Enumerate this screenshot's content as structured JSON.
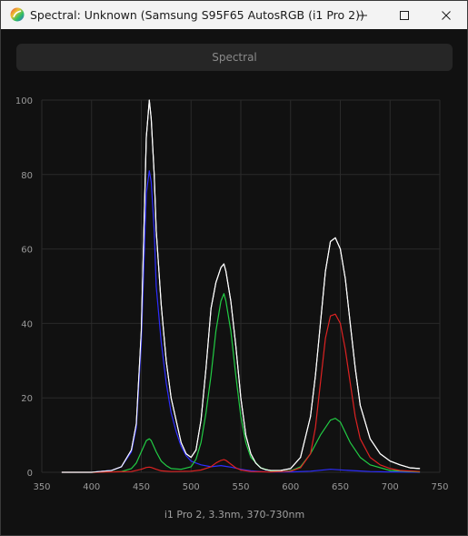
{
  "window": {
    "title": "Spectral: Unknown (Samsung S95F65 AutosRGB (i1 Pro 2))",
    "icons": {
      "app": "spectral-app-icon",
      "minimize": "minimize-icon",
      "maximize": "maximize-icon",
      "close": "close-icon"
    }
  },
  "toolbar": {
    "spectral_label": "Spectral"
  },
  "chart_data": {
    "type": "line",
    "caption": "i1 Pro 2, 3.3nm, 370-730nm",
    "xlim": [
      350,
      750
    ],
    "ylim": [
      0,
      100
    ],
    "xticks": [
      350,
      400,
      450,
      500,
      550,
      600,
      650,
      700,
      750
    ],
    "yticks": [
      0,
      20,
      40,
      60,
      80,
      100
    ],
    "grid": true,
    "series": [
      {
        "color": "#ffffff",
        "x": [
          370,
          380,
          400,
          420,
          430,
          440,
          445,
          450,
          455,
          458,
          460,
          463,
          465,
          470,
          475,
          480,
          485,
          490,
          495,
          500,
          505,
          510,
          515,
          520,
          525,
          530,
          533,
          535,
          540,
          545,
          550,
          555,
          560,
          565,
          570,
          575,
          580,
          590,
          600,
          610,
          620,
          625,
          630,
          635,
          640,
          645,
          650,
          655,
          660,
          665,
          670,
          680,
          690,
          700,
          710,
          720,
          730
        ],
        "y": [
          0,
          0,
          0,
          0.5,
          1.5,
          6,
          13,
          38,
          90,
          100,
          95,
          80,
          65,
          45,
          30,
          20,
          14,
          8,
          5,
          4,
          6,
          14,
          28,
          44,
          51,
          55,
          56,
          54,
          46,
          34,
          20,
          10,
          5,
          2.5,
          1.2,
          0.7,
          0.5,
          0.5,
          1,
          4,
          15,
          26,
          40,
          54,
          62,
          63,
          60,
          52,
          40,
          28,
          18,
          9,
          5,
          3,
          2,
          1.2,
          1
        ]
      },
      {
        "color": "#2d2dff",
        "x": [
          370,
          380,
          400,
          420,
          430,
          440,
          445,
          450,
          455,
          458,
          460,
          463,
          465,
          470,
          475,
          480,
          485,
          490,
          495,
          500,
          505,
          510,
          520,
          530,
          535,
          540,
          550,
          560,
          570,
          580,
          600,
          620,
          640,
          660,
          680,
          700,
          730
        ],
        "y": [
          0,
          0,
          0,
          0.5,
          1.5,
          5.5,
          12,
          35,
          75,
          81,
          78,
          65,
          50,
          35,
          24,
          16,
          11,
          7,
          4.5,
          3,
          2.5,
          2,
          1.5,
          1.8,
          1.6,
          1.4,
          0.8,
          0.4,
          0.2,
          0.1,
          0.1,
          0.3,
          0.8,
          0.5,
          0.2,
          0.1,
          0
        ]
      },
      {
        "color": "#22cc44",
        "x": [
          370,
          400,
          430,
          440,
          445,
          450,
          455,
          458,
          460,
          465,
          470,
          475,
          480,
          490,
          500,
          505,
          510,
          515,
          520,
          525,
          530,
          533,
          535,
          540,
          545,
          550,
          555,
          560,
          570,
          580,
          590,
          600,
          610,
          620,
          630,
          640,
          645,
          650,
          660,
          670,
          680,
          700,
          730
        ],
        "y": [
          0,
          0,
          0.2,
          1,
          2.5,
          5.5,
          8.5,
          9,
          8.5,
          5.5,
          3,
          1.8,
          1,
          0.8,
          1.5,
          3.5,
          8,
          16,
          26,
          38,
          46,
          48,
          46,
          38,
          26,
          15,
          8,
          4,
          1.2,
          0.4,
          0.2,
          0.4,
          1.5,
          5,
          10,
          14,
          14.5,
          13.5,
          8,
          4,
          2,
          0.5,
          0.1
        ]
      },
      {
        "color": "#dd2222",
        "x": [
          370,
          400,
          440,
          450,
          455,
          458,
          460,
          465,
          470,
          480,
          500,
          510,
          520,
          525,
          530,
          533,
          535,
          540,
          545,
          550,
          560,
          580,
          600,
          610,
          620,
          625,
          630,
          635,
          640,
          645,
          650,
          655,
          660,
          665,
          670,
          680,
          690,
          700,
          710,
          730
        ],
        "y": [
          0,
          0,
          0.2,
          0.8,
          1.3,
          1.4,
          1.3,
          0.8,
          0.4,
          0.2,
          0.3,
          0.6,
          1.5,
          2.5,
          3.2,
          3.4,
          3.2,
          2.2,
          1.2,
          0.6,
          0.2,
          0.1,
          0.3,
          1.2,
          5,
          12,
          24,
          36,
          42,
          42.5,
          40,
          33,
          24,
          15,
          9,
          4,
          2,
          1,
          0.5,
          0.2
        ]
      }
    ]
  }
}
